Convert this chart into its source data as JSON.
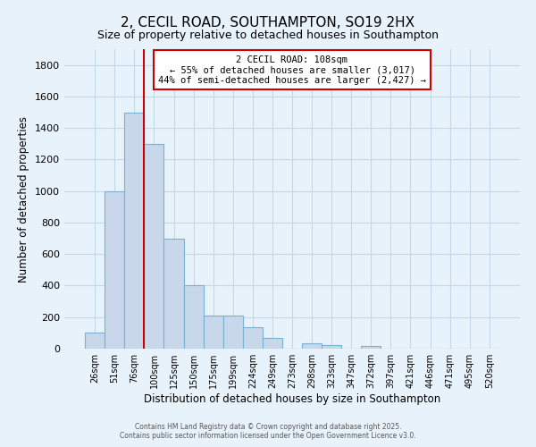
{
  "title": "2, CECIL ROAD, SOUTHAMPTON, SO19 2HX",
  "subtitle": "Size of property relative to detached houses in Southampton",
  "xlabel": "Distribution of detached houses by size in Southampton",
  "ylabel": "Number of detached properties",
  "categories": [
    "26sqm",
    "51sqm",
    "76sqm",
    "100sqm",
    "125sqm",
    "150sqm",
    "175sqm",
    "199sqm",
    "224sqm",
    "249sqm",
    "273sqm",
    "298sqm",
    "323sqm",
    "347sqm",
    "372sqm",
    "397sqm",
    "421sqm",
    "446sqm",
    "471sqm",
    "495sqm",
    "520sqm"
  ],
  "values": [
    100,
    1000,
    1500,
    1300,
    700,
    400,
    210,
    210,
    135,
    70,
    0,
    35,
    20,
    0,
    15,
    0,
    0,
    0,
    0,
    0,
    0
  ],
  "bar_color": "#c8d8ea",
  "bar_edge_color": "#7ab0d4",
  "vline_x_index": 3,
  "vline_color": "#cc0000",
  "annotation_title": "2 CECIL ROAD: 108sqm",
  "annotation_line1": "← 55% of detached houses are smaller (3,017)",
  "annotation_line2": "44% of semi-detached houses are larger (2,427) →",
  "annotation_box_color": "#ffffff",
  "annotation_box_edge": "#cc0000",
  "ylim": [
    0,
    1900
  ],
  "yticks": [
    0,
    200,
    400,
    600,
    800,
    1000,
    1200,
    1400,
    1600,
    1800
  ],
  "grid_color": "#c5d8e8",
  "background_color": "#e8f2fb",
  "footer1": "Contains HM Land Registry data © Crown copyright and database right 2025.",
  "footer2": "Contains public sector information licensed under the Open Government Licence v3.0."
}
